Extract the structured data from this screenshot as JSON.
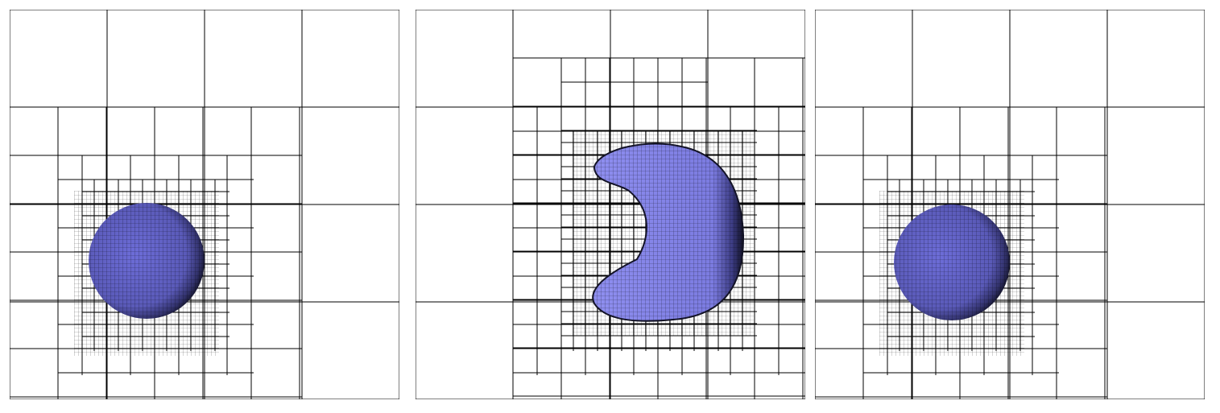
{
  "figure": {
    "panel_count": 3,
    "panels": [
      {
        "id": "initial",
        "shape": "sphere"
      },
      {
        "id": "deformed",
        "shape": "crescent"
      },
      {
        "id": "final",
        "shape": "sphere"
      }
    ],
    "colors": {
      "background": "#ffffff",
      "grid_line": "#000000",
      "shape_light": "#8f8ff0",
      "shape_mid": "#6464c8",
      "shape_dark": "#1a1a3a"
    }
  }
}
